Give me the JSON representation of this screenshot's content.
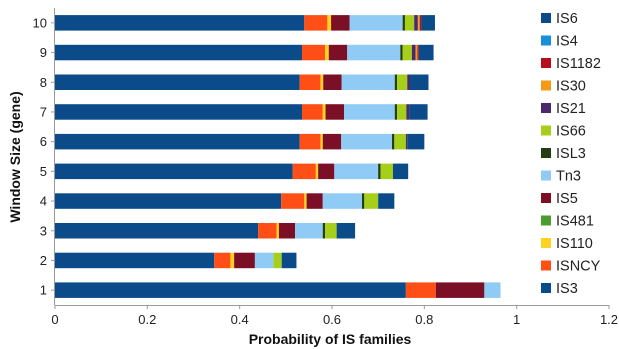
{
  "chart_data": {
    "type": "bar",
    "orientation": "horizontal",
    "stacked": true,
    "xlabel": "Probability of IS families",
    "ylabel": "Window Size (gene)",
    "xlim": [
      0,
      1.2
    ],
    "xticks": [
      "0",
      "0.2",
      "0.4",
      "0.6",
      "0.8",
      "1",
      "1.2"
    ],
    "grid": false,
    "legend_position": "right",
    "categories": [
      "1",
      "2",
      "3",
      "4",
      "5",
      "6",
      "7",
      "8",
      "9",
      "10"
    ],
    "series": [
      {
        "name": "IS3",
        "color": "#0b4b8a",
        "values": [
          0.76,
          0.345,
          0.44,
          0.49,
          0.515,
          0.53,
          0.535,
          0.53,
          0.535,
          0.54
        ]
      },
      {
        "name": "ISNCY",
        "color": "#ff4f16",
        "values": [
          0.065,
          0.035,
          0.04,
          0.05,
          0.05,
          0.045,
          0.045,
          0.045,
          0.05,
          0.05
        ]
      },
      {
        "name": "IS110",
        "color": "#ffd21f",
        "values": [
          0.0,
          0.008,
          0.005,
          0.005,
          0.005,
          0.005,
          0.006,
          0.006,
          0.008,
          0.008
        ]
      },
      {
        "name": "IS481",
        "color": "#4b9b2e",
        "values": [
          0.0,
          0.0,
          0.0,
          0.0,
          0.0,
          0.0,
          0.0,
          0.0,
          0.0,
          0.0
        ]
      },
      {
        "name": "IS5",
        "color": "#7b0f26",
        "values": [
          0.105,
          0.045,
          0.035,
          0.035,
          0.035,
          0.04,
          0.04,
          0.04,
          0.04,
          0.04
        ]
      },
      {
        "name": "Tn3",
        "color": "#8fcbf4",
        "values": [
          0.035,
          0.04,
          0.06,
          0.085,
          0.095,
          0.11,
          0.11,
          0.115,
          0.115,
          0.115
        ]
      },
      {
        "name": "ISL3",
        "color": "#253d12",
        "values": [
          0.0,
          0.0,
          0.005,
          0.005,
          0.005,
          0.005,
          0.005,
          0.005,
          0.005,
          0.005
        ]
      },
      {
        "name": "IS66",
        "color": "#a6cf19",
        "values": [
          0.0,
          0.018,
          0.025,
          0.03,
          0.027,
          0.025,
          0.02,
          0.022,
          0.02,
          0.02
        ]
      },
      {
        "name": "IS21",
        "color": "#4a2a6b",
        "values": [
          0.0,
          0.0,
          0.0,
          0.0,
          0.0,
          0.003,
          0.006,
          0.006,
          0.008,
          0.008
        ]
      },
      {
        "name": "IS30",
        "color": "#f49a18",
        "values": [
          0.0,
          0.0,
          0.0,
          0.0,
          0.0,
          0.0,
          0.0,
          0.0,
          0.004,
          0.004
        ]
      },
      {
        "name": "IS1182",
        "color": "#b50f1e",
        "values": [
          0.0,
          0.0,
          0.0,
          0.0,
          0.0,
          0.0,
          0.0,
          0.0,
          0.003,
          0.003
        ]
      },
      {
        "name": "IS4",
        "color": "#1890d8",
        "values": [
          0.0,
          0.0,
          0.0,
          0.0,
          0.0,
          0.0,
          0.0,
          0.0,
          0.0,
          0.0
        ]
      },
      {
        "name": "IS6",
        "color": "#0b4b8a",
        "values": [
          0.0,
          0.032,
          0.04,
          0.035,
          0.033,
          0.037,
          0.04,
          0.04,
          0.032,
          0.03
        ]
      }
    ],
    "legend": [
      "IS6",
      "IS4",
      "IS1182",
      "IS30",
      "IS21",
      "IS66",
      "ISL3",
      "Tn3",
      "IS5",
      "IS481",
      "IS110",
      "ISNCY",
      "IS3"
    ]
  }
}
